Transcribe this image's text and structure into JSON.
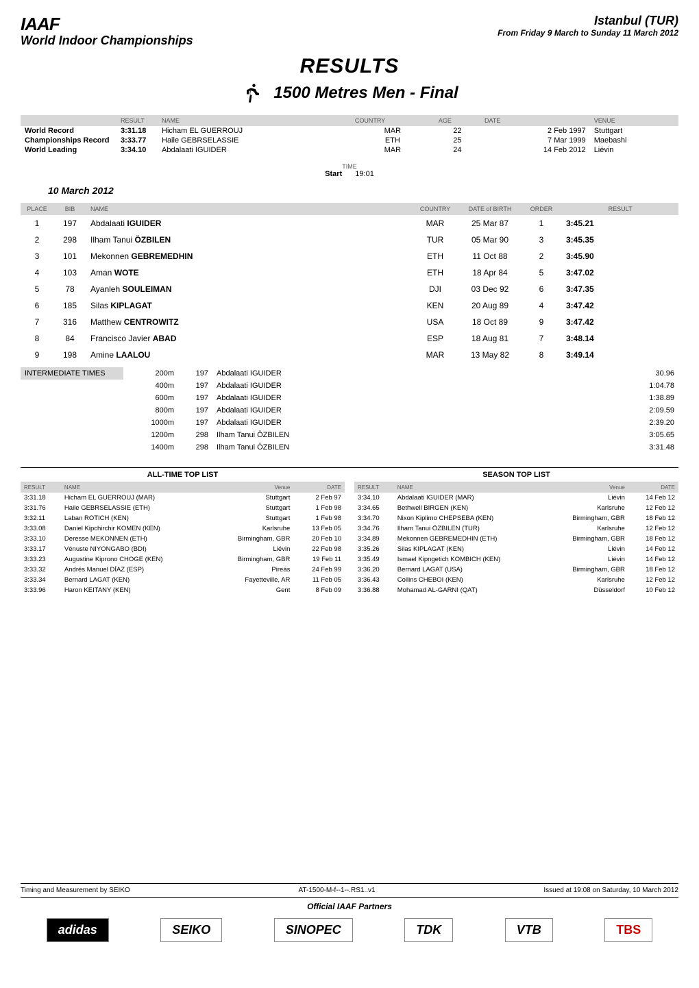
{
  "header": {
    "federation": "IAAF",
    "championship": "World Indoor Championships",
    "venue": "Istanbul (TUR)",
    "date_range": "From Friday 9 March to Sunday 11 March 2012"
  },
  "titles": {
    "results": "RESULTS",
    "event": "1500 Metres Men - Final"
  },
  "records_header": {
    "col_result": "RESULT",
    "col_name": "NAME",
    "col_country": "COUNTRY",
    "col_age": "AGE",
    "col_date": "DATE",
    "col_venue": "VENUE"
  },
  "records": [
    {
      "label": "World Record",
      "time": "3:31.18",
      "name": "Hicham EL GUERROUJ",
      "country": "MAR",
      "age": "22",
      "date": "2 Feb 1997",
      "venue": "Stuttgart"
    },
    {
      "label": "Championships Record",
      "time": "3:33.77",
      "name": "Haile GEBRSELASSIE",
      "country": "ETH",
      "age": "25",
      "date": "7 Mar 1999",
      "venue": "Maebashi"
    },
    {
      "label": "World Leading",
      "time": "3:34.10",
      "name": "Abdalaati IGUIDER",
      "country": "MAR",
      "age": "24",
      "date": "14 Feb 2012",
      "venue": "Liévin"
    }
  ],
  "start": {
    "time_label": "TIME",
    "start_label": "Start",
    "start_value": "19:01",
    "heading": "10 March 2012"
  },
  "results_header": {
    "place": "PLACE",
    "bib": "BIB",
    "name": "NAME",
    "country": "COUNTRY",
    "dob": "DATE of BIRTH",
    "order": "ORDER",
    "result": "RESULT"
  },
  "results": [
    {
      "place": "1",
      "bib": "197",
      "first": "Abdalaati",
      "last": "IGUIDER",
      "country": "MAR",
      "dob": "25 Mar 87",
      "order": "1",
      "result": "3:45.21"
    },
    {
      "place": "2",
      "bib": "298",
      "first": "Ilham Tanui",
      "last": "ÖZBILEN",
      "country": "TUR",
      "dob": "05 Mar 90",
      "order": "3",
      "result": "3:45.35"
    },
    {
      "place": "3",
      "bib": "101",
      "first": "Mekonnen",
      "last": "GEBREMEDHIN",
      "country": "ETH",
      "dob": "11 Oct 88",
      "order": "2",
      "result": "3:45.90"
    },
    {
      "place": "4",
      "bib": "103",
      "first": "Aman",
      "last": "WOTE",
      "country": "ETH",
      "dob": "18 Apr 84",
      "order": "5",
      "result": "3:47.02"
    },
    {
      "place": "5",
      "bib": "78",
      "first": "Ayanleh",
      "last": "SOULEIMAN",
      "country": "DJI",
      "dob": "03 Dec 92",
      "order": "6",
      "result": "3:47.35"
    },
    {
      "place": "6",
      "bib": "185",
      "first": "Silas",
      "last": "KIPLAGAT",
      "country": "KEN",
      "dob": "20 Aug 89",
      "order": "4",
      "result": "3:47.42"
    },
    {
      "place": "7",
      "bib": "316",
      "first": "Matthew",
      "last": "CENTROWITZ",
      "country": "USA",
      "dob": "18 Oct 89",
      "order": "9",
      "result": "3:47.42"
    },
    {
      "place": "8",
      "bib": "84",
      "first": "Francisco Javier",
      "last": "ABAD",
      "country": "ESP",
      "dob": "18 Aug 81",
      "order": "7",
      "result": "3:48.14"
    },
    {
      "place": "9",
      "bib": "198",
      "first": "Amine",
      "last": "LAALOU",
      "country": "MAR",
      "dob": "13 May 82",
      "order": "8",
      "result": "3:49.14"
    }
  ],
  "intermediate": {
    "label": "INTERMEDIATE TIMES",
    "rows": [
      {
        "dist": "200m",
        "bib": "197",
        "name": "Abdalaati IGUIDER",
        "time": "30.96"
      },
      {
        "dist": "400m",
        "bib": "197",
        "name": "Abdalaati IGUIDER",
        "time": "1:04.78"
      },
      {
        "dist": "600m",
        "bib": "197",
        "name": "Abdalaati IGUIDER",
        "time": "1:38.89"
      },
      {
        "dist": "800m",
        "bib": "197",
        "name": "Abdalaati IGUIDER",
        "time": "2:09.59"
      },
      {
        "dist": "1000m",
        "bib": "197",
        "name": "Abdalaati IGUIDER",
        "time": "2:39.20"
      },
      {
        "dist": "1200m",
        "bib": "298",
        "name": "Ilham Tanui ÖZBILEN",
        "time": "3:05.65"
      },
      {
        "dist": "1400m",
        "bib": "298",
        "name": "Ilham Tanui ÖZBILEN",
        "time": "3:31.48"
      }
    ]
  },
  "alltime": {
    "title": "ALL-TIME TOP LIST",
    "header": {
      "result": "RESULT",
      "name": "NAME",
      "venue": "Venue",
      "date": "DATE"
    },
    "rows": [
      {
        "result": "3:31.18",
        "name": "Hicham EL GUERROUJ (MAR)",
        "venue": "Stuttgart",
        "date": "2 Feb 97"
      },
      {
        "result": "3:31.76",
        "name": "Haile GEBRSELASSIE (ETH)",
        "venue": "Stuttgart",
        "date": "1 Feb 98"
      },
      {
        "result": "3:32.11",
        "name": "Laban ROTICH (KEN)",
        "venue": "Stuttgart",
        "date": "1 Feb 98"
      },
      {
        "result": "3:33.08",
        "name": "Daniel Kipchirchir KOMEN (KEN)",
        "venue": "Karlsruhe",
        "date": "13 Feb 05"
      },
      {
        "result": "3:33.10",
        "name": "Deresse MEKONNEN (ETH)",
        "venue": "Birmingham, GBR",
        "date": "20 Feb 10"
      },
      {
        "result": "3:33.17",
        "name": "Vénuste NIYONGABO (BDI)",
        "venue": "Liévin",
        "date": "22 Feb 98"
      },
      {
        "result": "3:33.23",
        "name": "Augustine Kiprono CHOGE (KEN)",
        "venue": "Birmingham, GBR",
        "date": "19 Feb 11"
      },
      {
        "result": "3:33.32",
        "name": "Andrés Manuel DÍAZ (ESP)",
        "venue": "Pireás",
        "date": "24 Feb 99"
      },
      {
        "result": "3:33.34",
        "name": "Bernard LAGAT (KEN)",
        "venue": "Fayetteville, AR",
        "date": "11 Feb 05"
      },
      {
        "result": "3:33.96",
        "name": "Haron KEITANY (KEN)",
        "venue": "Gent",
        "date": "8 Feb 09"
      }
    ]
  },
  "season": {
    "title": "SEASON TOP LIST",
    "header": {
      "result": "RESULT",
      "name": "NAME",
      "venue": "Venue",
      "date": "DATE"
    },
    "rows": [
      {
        "result": "3:34.10",
        "name": "Abdalaati IGUIDER (MAR)",
        "venue": "Liévin",
        "date": "14 Feb 12"
      },
      {
        "result": "3:34.65",
        "name": "Bethwell BIRGEN (KEN)",
        "venue": "Karlsruhe",
        "date": "12 Feb 12"
      },
      {
        "result": "3:34.70",
        "name": "Nixon Kiplimo CHEPSEBA (KEN)",
        "venue": "Birmingham, GBR",
        "date": "18 Feb 12"
      },
      {
        "result": "3:34.76",
        "name": "Ilham Tanui ÖZBILEN (TUR)",
        "venue": "Karlsruhe",
        "date": "12 Feb 12"
      },
      {
        "result": "3:34.89",
        "name": "Mekonnen GEBREMEDHIN (ETH)",
        "venue": "Birmingham, GBR",
        "date": "18 Feb 12"
      },
      {
        "result": "3:35.26",
        "name": "Silas KIPLAGAT (KEN)",
        "venue": "Liévin",
        "date": "14 Feb 12"
      },
      {
        "result": "3:35.49",
        "name": "Ismael Kipngetich KOMBICH (KEN)",
        "venue": "Liévin",
        "date": "14 Feb 12"
      },
      {
        "result": "3:36.20",
        "name": "Bernard LAGAT (USA)",
        "venue": "Birmingham, GBR",
        "date": "18 Feb 12"
      },
      {
        "result": "3:36.43",
        "name": "Collins CHEBOI (KEN)",
        "venue": "Karlsruhe",
        "date": "12 Feb 12"
      },
      {
        "result": "3:36.88",
        "name": "Mohamad AL-GARNI (QAT)",
        "venue": "Düsseldorf",
        "date": "10 Feb 12"
      }
    ]
  },
  "footer": {
    "left": "Timing and Measurement by SEIKO",
    "center": "AT-1500-M-f--1--.RS1..v1",
    "right": "Issued at 19:08 on Saturday, 10 March 2012",
    "partners": "Official IAAF Partners",
    "sponsors": [
      "adidas",
      "SEIKO",
      "SINOPEC",
      "TDK",
      "VTB",
      "TBS"
    ]
  },
  "colors": {
    "header_bg": "#d8d8d8",
    "text": "#000000",
    "muted": "#555555"
  }
}
